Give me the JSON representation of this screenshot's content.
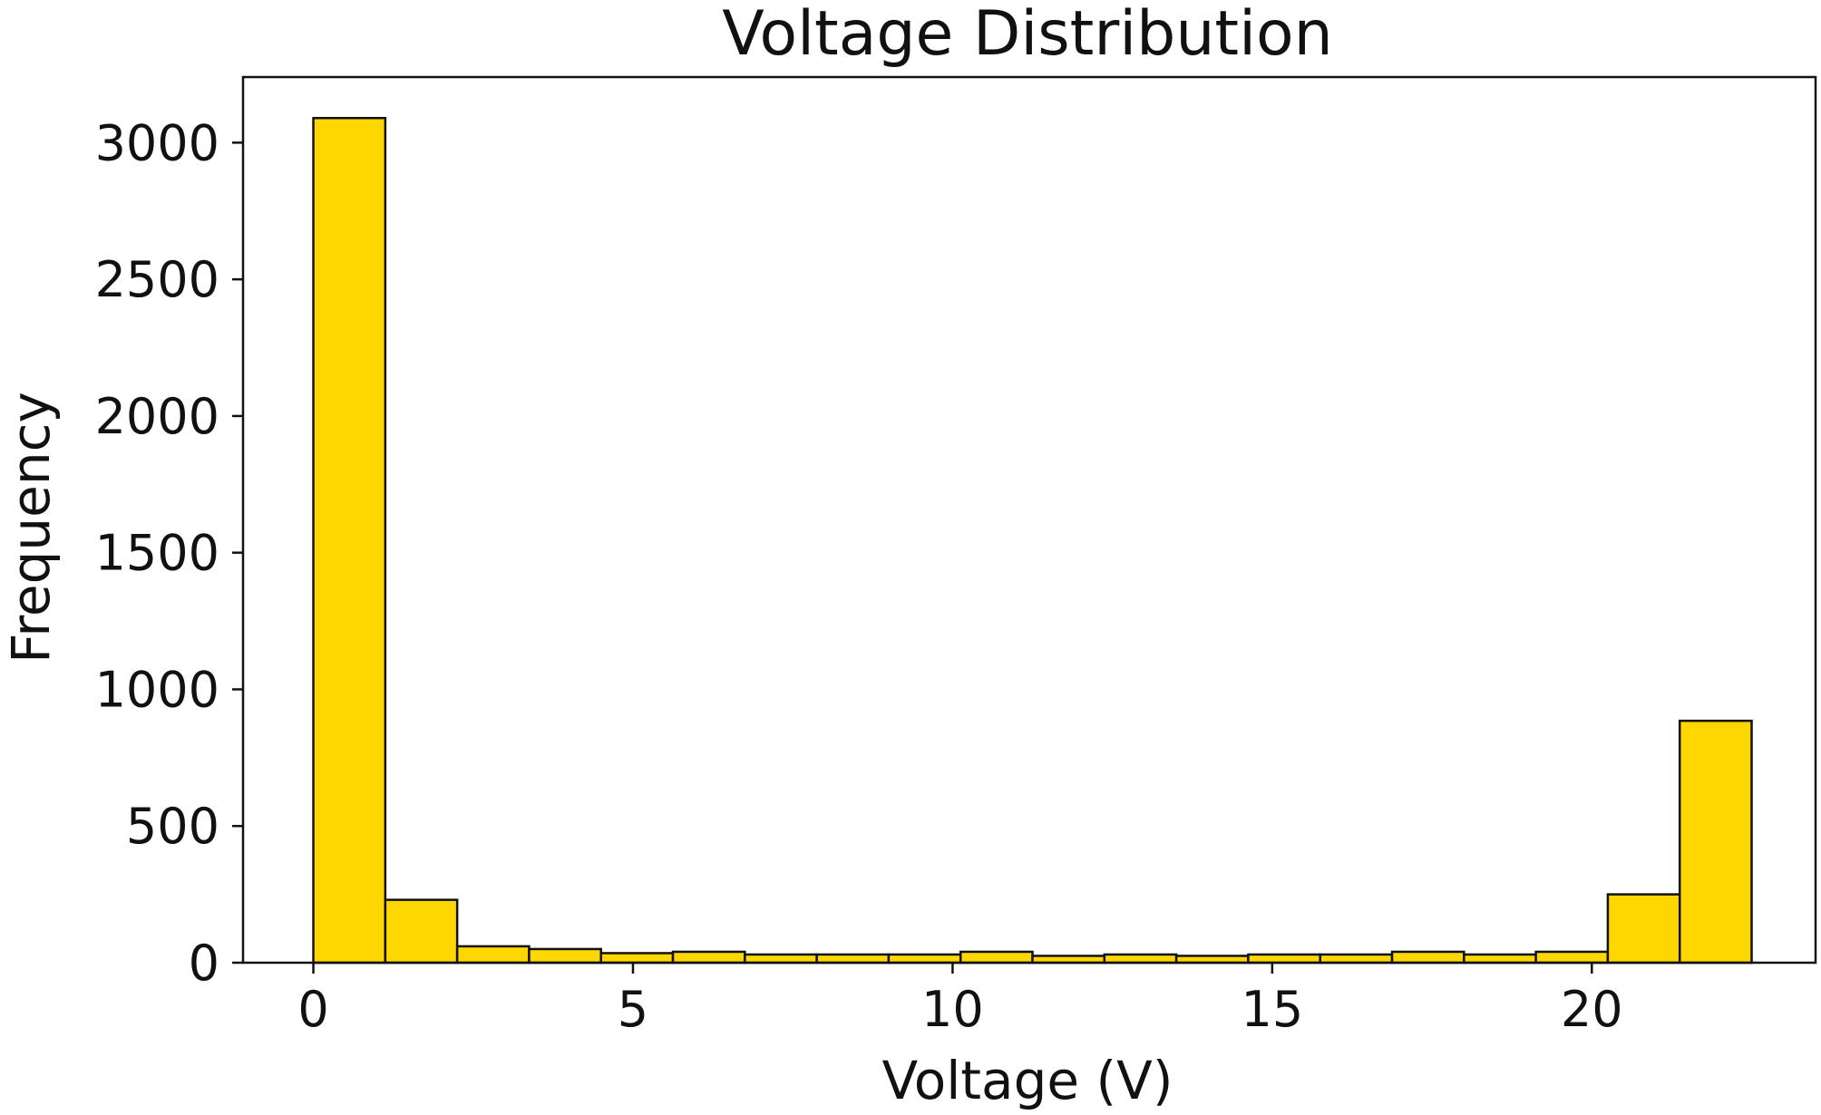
{
  "chart_data": {
    "type": "bar",
    "subtype": "histogram",
    "title": "Voltage Distribution",
    "xlabel": "Voltage (V)",
    "ylabel": "Frequency",
    "bin_edges": [
      0,
      1.125,
      2.25,
      3.375,
      4.5,
      5.625,
      6.75,
      7.875,
      9,
      10.125,
      11.25,
      12.375,
      13.5,
      14.625,
      15.75,
      16.875,
      18,
      19.125,
      20.25,
      21.375,
      22.5
    ],
    "values": [
      3090,
      230,
      60,
      50,
      35,
      40,
      30,
      30,
      30,
      40,
      25,
      30,
      25,
      30,
      30,
      40,
      30,
      40,
      250,
      885
    ],
    "xlim": [
      -1.1,
      23.5
    ],
    "ylim": [
      0,
      3240
    ],
    "xticks": [
      0,
      5,
      10,
      15,
      20
    ],
    "yticks": [
      0,
      500,
      1000,
      1500,
      2000,
      2500,
      3000
    ],
    "bar_color": "#FFD700",
    "edge_color": "#111111",
    "grid": false,
    "legend": "none"
  }
}
